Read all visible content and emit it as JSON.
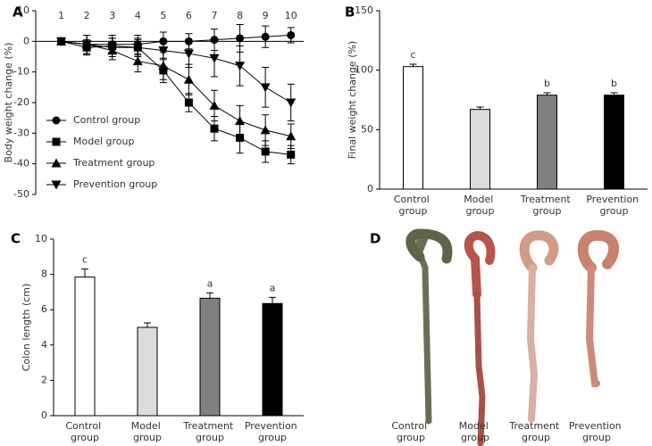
{
  "chart_data": [
    {
      "type": "line",
      "label": "A",
      "y_label": "Body weight change (%)",
      "x": [
        1,
        2,
        3,
        4,
        5,
        6,
        7,
        8,
        9,
        10
      ],
      "xlim": [
        0,
        10.5
      ],
      "xticks": [
        1,
        2,
        3,
        4,
        5,
        6,
        7,
        8,
        9,
        10
      ],
      "ylim": [
        -50,
        10
      ],
      "yticks": [
        10,
        0,
        -10,
        -20,
        -30,
        -40,
        -50
      ],
      "series": [
        {
          "name": "Control group",
          "color": "#000000",
          "marker": "circle",
          "values": [
            0,
            -1,
            -1,
            -1,
            0,
            0,
            0.5,
            1,
            1.5,
            2
          ],
          "errors": [
            0,
            3,
            3,
            3,
            3,
            2.5,
            3.5,
            4.5,
            3.5,
            2.5
          ]
        },
        {
          "name": "Model group",
          "color": "#000000",
          "marker": "square",
          "values": [
            0,
            -2,
            -1.5,
            -2,
            -9.5,
            -20,
            -28.5,
            -31.5,
            -36,
            -37
          ],
          "errors": [
            0,
            2.5,
            2.5,
            2.5,
            4,
            3,
            4,
            5,
            3.5,
            3
          ]
        },
        {
          "name": "Treatment group",
          "color": "#000000",
          "marker": "triangle",
          "values": [
            0,
            -1,
            -3,
            -6.5,
            -8,
            -12.5,
            -21,
            -26,
            -29,
            -31
          ],
          "errors": [
            0,
            3,
            3,
            3.5,
            4.5,
            5,
            5,
            5,
            5,
            4
          ]
        },
        {
          "name": "Prevention group",
          "color": "#000000",
          "marker": "triangle-down",
          "values": [
            0,
            -1,
            -2,
            -2,
            -3,
            -4,
            -5.5,
            -8,
            -15,
            -20
          ],
          "errors": [
            0,
            3,
            3,
            3,
            3,
            4.5,
            6,
            6.5,
            6.5,
            6
          ]
        }
      ]
    },
    {
      "type": "bar",
      "label": "B",
      "y_label": "Final weight change (%)",
      "categories": [
        "Control group",
        "Model group",
        "Treatment group",
        "Prevention group"
      ],
      "values": [
        103,
        67,
        79,
        79
      ],
      "errors": [
        2,
        2,
        2,
        2
      ],
      "letters": [
        "c",
        null,
        "b",
        "b"
      ],
      "colors": [
        "#ffffff",
        "#dcdcdc",
        "#808080",
        "#000000"
      ],
      "ylim": [
        0,
        150
      ],
      "yticks": [
        0,
        50,
        100,
        150
      ]
    },
    {
      "type": "bar",
      "label": "C",
      "y_label": "Colon length (cm)",
      "categories": [
        "Control group",
        "Model group",
        "Treatment group",
        "Prevention group"
      ],
      "values": [
        7.85,
        5.0,
        6.65,
        6.35
      ],
      "errors": [
        0.45,
        0.25,
        0.3,
        0.35
      ],
      "letters": [
        "c",
        null,
        "a",
        "a"
      ],
      "colors": [
        "#ffffff",
        "#dcdcdc",
        "#808080",
        "#000000"
      ],
      "ylim": [
        0,
        10
      ],
      "yticks": [
        0,
        2,
        4,
        6,
        8,
        10
      ]
    }
  ],
  "photo": {
    "label": "D",
    "captions": [
      "Control group",
      "Model group",
      "Treatment group",
      "Prevention group"
    ]
  }
}
